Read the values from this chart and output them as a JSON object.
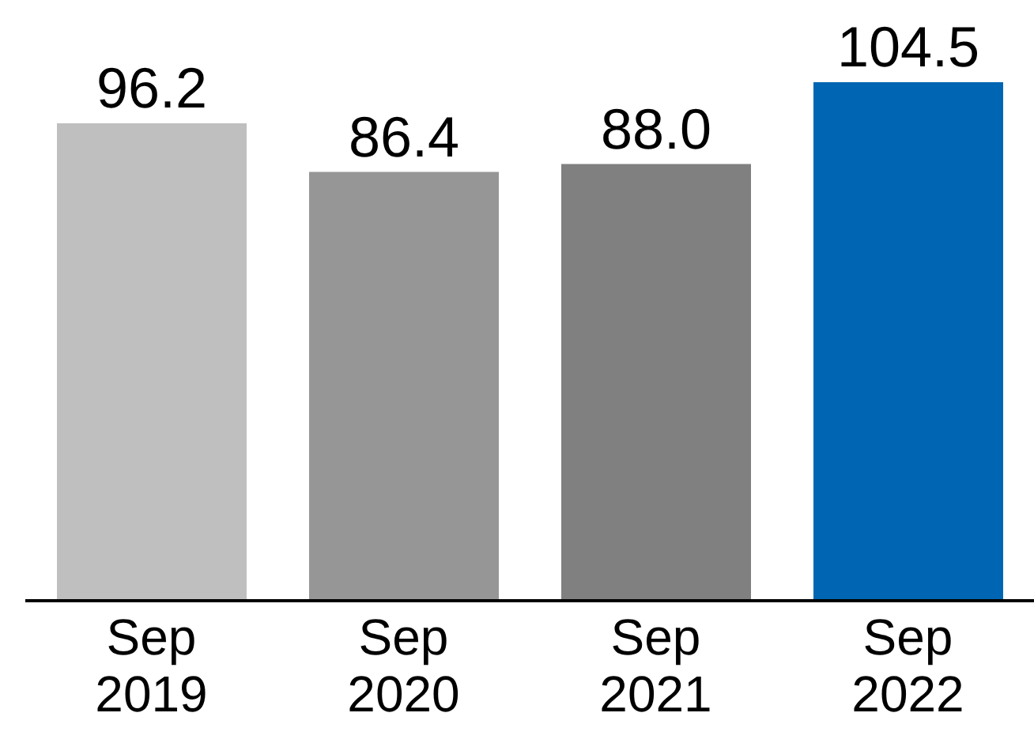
{
  "chart_data": {
    "type": "bar",
    "categories": [
      "Sep 2019",
      "Sep 2020",
      "Sep 2021",
      "Sep 2022"
    ],
    "values": [
      96.2,
      86.4,
      88.0,
      104.5
    ],
    "colors": [
      "#bfbfbf",
      "#969696",
      "#808080",
      "#0066b3"
    ],
    "value_labels": [
      "96.2",
      "86.4",
      "88.0",
      "104.5"
    ],
    "ylim": [
      0,
      104.5
    ],
    "tick_labels": "x",
    "grid": false
  }
}
